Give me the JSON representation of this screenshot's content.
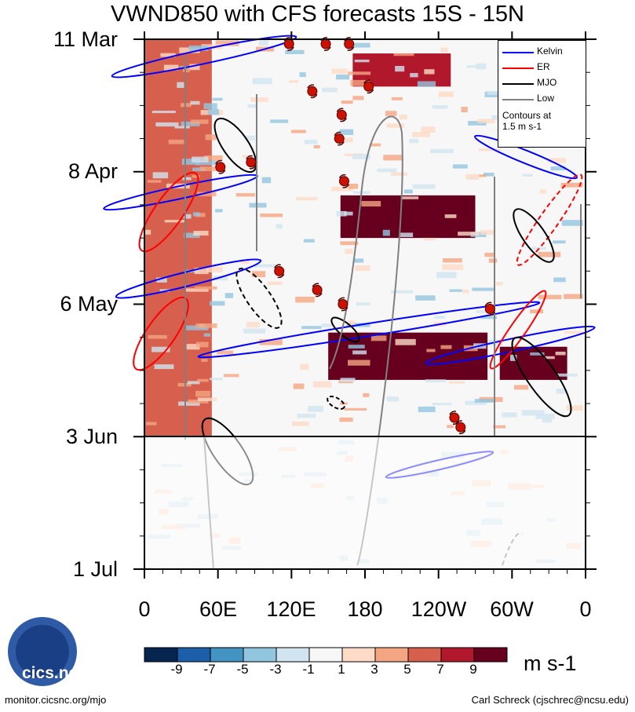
{
  "chart_data": {
    "type": "heatmap",
    "title": "VWND850 with CFS forecasts  15S - 15N",
    "x_ticks": [
      "0",
      "60E",
      "120E",
      "180",
      "120W",
      "60W",
      "0"
    ],
    "x_range_deg_east": [
      0,
      360
    ],
    "y_ticks": [
      "11 Mar",
      "8 Apr",
      "6 May",
      "3 Jun",
      "1 Jul"
    ],
    "y_range": [
      "11 Mar",
      "1 Jul"
    ],
    "forecast_start": "3 Jun",
    "units": "m s-1",
    "colorbar_labels": [
      "-9",
      "-7",
      "-5",
      "-3",
      "-1",
      "1",
      "3",
      "5",
      "7",
      "9"
    ],
    "colorbar_colors": [
      "#06254f",
      "#1d5ea8",
      "#4393c3",
      "#92c5de",
      "#d1e5f0",
      "#f7f7f7",
      "#fddbc7",
      "#f4a582",
      "#d6604d",
      "#b2182b",
      "#67001f"
    ],
    "legend": [
      {
        "name": "Kelvin",
        "color": "#0000ff"
      },
      {
        "name": "ER",
        "color": "#ff0000"
      },
      {
        "name": "MJO",
        "color": "#000000"
      },
      {
        "name": "Low",
        "color": "#808080"
      }
    ],
    "legend_note": [
      "Contours at",
      "1.5 m s-1"
    ],
    "bands": [
      {
        "lon_start": 170,
        "lon_end": 250,
        "date_start": "14 Mar",
        "date_end": "21 Mar",
        "value": 8
      },
      {
        "lon_start": 160,
        "lon_end": 270,
        "date_start": "13 Apr",
        "date_end": "22 Apr",
        "value": 9
      },
      {
        "lon_start": 150,
        "lon_end": 280,
        "date_start": "12 May",
        "date_end": "22 May",
        "value": 9
      },
      {
        "lon_start": 290,
        "lon_end": 345,
        "date_start": "15 May",
        "date_end": "22 May",
        "value": 11
      },
      {
        "lon_start": 0,
        "lon_end": 55,
        "date_start": "11 Mar",
        "date_end": "3 Jun",
        "value": 5
      }
    ],
    "storms": [
      {
        "lon": 118,
        "date": "12 Mar"
      },
      {
        "lon": 148,
        "date": "12 Mar"
      },
      {
        "lon": 167,
        "date": "12 Mar"
      },
      {
        "lon": 137,
        "date": "22 Mar"
      },
      {
        "lon": 183,
        "date": "21 Mar"
      },
      {
        "lon": 161,
        "date": "27 Mar"
      },
      {
        "lon": 159,
        "date": "1 Apr"
      },
      {
        "lon": 163,
        "date": "10 Apr"
      },
      {
        "lon": 62,
        "date": "7 Apr"
      },
      {
        "lon": 87,
        "date": "6 Apr"
      },
      {
        "lon": 110,
        "date": "29 Apr"
      },
      {
        "lon": 141,
        "date": "3 May"
      },
      {
        "lon": 162,
        "date": "6 May"
      },
      {
        "lon": 282,
        "date": "7 May"
      },
      {
        "lon": 253,
        "date": "30 May"
      },
      {
        "lon": 258,
        "date": "1 Jun"
      }
    ]
  },
  "logo": {
    "text": "cics.nc"
  },
  "credits": {
    "left": "monitor.cicsnc.org/mjo",
    "right": "Carl Schreck (cjschrec@ncsu.edu)"
  }
}
